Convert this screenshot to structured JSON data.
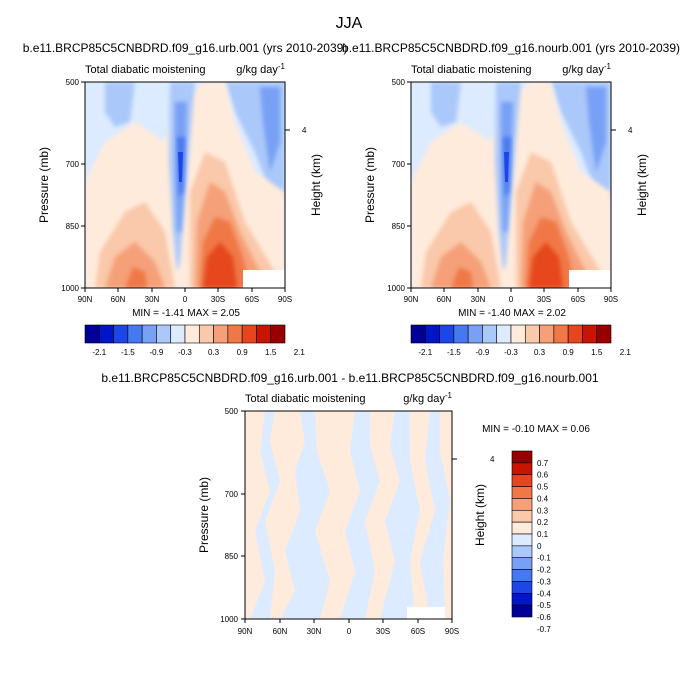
{
  "page": {
    "title": "JJA"
  },
  "panels": [
    {
      "id": "urb",
      "title": "b.e11.BRCP85C5CNBDRD.f09_g16.urb.001 (yrs 2010-2039)",
      "left_label": "Total diabatic moistening",
      "units": "g/kg day",
      "units_exp": "-1",
      "ylabel": "Pressure (mb)",
      "ylabel_right": "Height (km)",
      "yticks": [
        "500",
        "700",
        "850",
        "1000"
      ],
      "height_tick": "4",
      "xticks": [
        "90N",
        "60N",
        "30N",
        "0",
        "30S",
        "60S",
        "90S"
      ],
      "stats": "MIN =  -1.41   MAX =   2.05"
    },
    {
      "id": "nourb",
      "title": "b.e11.BRCP85C5CNBDRD.f09_g16.nourb.001 (yrs 2010-2039)",
      "left_label": "Total diabatic moistening",
      "units": "g/kg day",
      "units_exp": "-1",
      "ylabel": "Pressure (mb)",
      "ylabel_right": "Height (km)",
      "yticks": [
        "500",
        "700",
        "850",
        "1000"
      ],
      "height_tick": "4",
      "xticks": [
        "90N",
        "60N",
        "30N",
        "0",
        "30S",
        "60S",
        "90S"
      ],
      "stats": "MIN =  -1.40   MAX =   2.02"
    },
    {
      "id": "diff",
      "title": "b.e11.BRCP85C5CNBDRD.f09_g16.urb.001 - b.e11.BRCP85C5CNBDRD.f09_g16.nourb.001",
      "left_label": "Total diabatic moistening",
      "units": "g/kg day",
      "units_exp": "-1",
      "ylabel": "Pressure (mb)",
      "ylabel_right": "Height (km)",
      "yticks": [
        "500",
        "700",
        "850",
        "1000"
      ],
      "height_tick": "4",
      "xticks": [
        "90N",
        "60N",
        "30N",
        "0",
        "30S",
        "60S",
        "90S"
      ],
      "stats": "MIN =  -0.10   MAX =   0.06"
    }
  ],
  "colorbars": {
    "top": {
      "colors": [
        "#000096",
        "#0014c8",
        "#1e46e6",
        "#4678f0",
        "#78a0f5",
        "#aac8fa",
        "#dcebff",
        "#ffebdc",
        "#fac8aa",
        "#f5a078",
        "#f07846",
        "#e6461e",
        "#c81400",
        "#960000"
      ],
      "labels": [
        "-2.1",
        "-1.5",
        "-0.9",
        "-0.3",
        "0.3",
        "0.9",
        "1.5",
        "2.1"
      ]
    },
    "diff": {
      "colors": [
        "#000096",
        "#0014c8",
        "#1e46e6",
        "#4678f0",
        "#78a0f5",
        "#aac8fa",
        "#dcebff",
        "#ffebdc",
        "#fac8aa",
        "#f5a078",
        "#f07846",
        "#e6461e",
        "#c81400",
        "#960000"
      ],
      "labels": [
        "-0.7",
        "-0.6",
        "-0.5",
        "-0.4",
        "-0.3",
        "-0.2",
        "-0.1",
        "0",
        "0.1",
        "0.2",
        "0.3",
        "0.4",
        "0.5",
        "0.6",
        "0.7"
      ]
    }
  },
  "chart_data": [
    {
      "type": "heatmap",
      "title": "b.e11.BRCP85C5CNBDRD.f09_g16.urb.001 (yrs 2010-2039)",
      "xlabel": "",
      "ylabel": "Pressure (mb)",
      "x_ticks": [
        "90N",
        "60N",
        "30N",
        "0",
        "30S",
        "60S",
        "90S"
      ],
      "y_ticks": [
        500,
        700,
        850,
        1000
      ],
      "ylim": [
        1000,
        500
      ],
      "min": -1.41,
      "max": 2.05,
      "units": "g/kg day-1",
      "features": [
        {
          "lat": -20,
          "p": 880,
          "value": 1.8
        },
        {
          "lat": 35,
          "p": 900,
          "value": 1.0
        },
        {
          "lat": 8,
          "p": 700,
          "value": -1.4
        },
        {
          "lat": -40,
          "p": 560,
          "value": -0.5
        }
      ]
    },
    {
      "type": "heatmap",
      "title": "b.e11.BRCP85C5CNBDRD.f09_g16.nourb.001 (yrs 2010-2039)",
      "xlabel": "",
      "ylabel": "Pressure (mb)",
      "x_ticks": [
        "90N",
        "60N",
        "30N",
        "0",
        "30S",
        "60S",
        "90S"
      ],
      "y_ticks": [
        500,
        700,
        850,
        1000
      ],
      "ylim": [
        1000,
        500
      ],
      "min": -1.4,
      "max": 2.02,
      "units": "g/kg day-1",
      "features": [
        {
          "lat": -20,
          "p": 880,
          "value": 1.8
        },
        {
          "lat": 35,
          "p": 900,
          "value": 1.0
        },
        {
          "lat": 8,
          "p": 700,
          "value": -1.4
        },
        {
          "lat": -40,
          "p": 560,
          "value": -0.5
        }
      ]
    },
    {
      "type": "heatmap",
      "title": "b.e11.BRCP85C5CNBDRD.f09_g16.urb.001 - b.e11.BRCP85C5CNBDRD.f09_g16.nourb.001",
      "xlabel": "",
      "ylabel": "Pressure (mb)",
      "x_ticks": [
        "90N",
        "60N",
        "30N",
        "0",
        "30S",
        "60S",
        "90S"
      ],
      "y_ticks": [
        500,
        700,
        850,
        1000
      ],
      "ylim": [
        1000,
        500
      ],
      "min": -0.1,
      "max": 0.06,
      "units": "g/kg day-1"
    }
  ]
}
